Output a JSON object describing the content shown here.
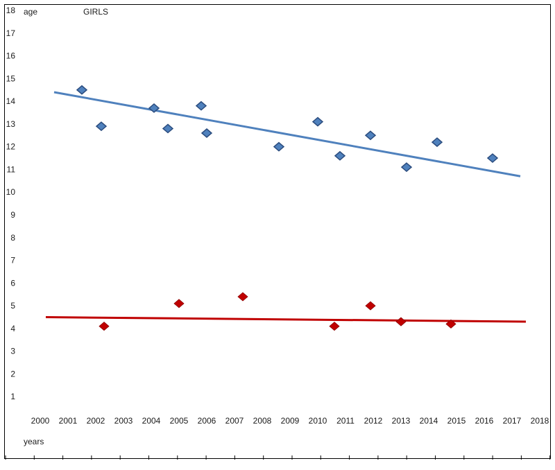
{
  "chart_data": {
    "type": "scatter",
    "title": "GIRLS",
    "ylabel": "age",
    "xlabel": "years",
    "xlim": [
      2000,
      2018
    ],
    "ylim": [
      0,
      18
    ],
    "x_ticks": [
      "2000",
      "2001",
      "2002",
      "2003",
      "2004",
      "2005",
      "2006",
      "2007",
      "2008",
      "2009",
      "2010",
      "2011",
      "2012",
      "2013",
      "2014",
      "2015",
      "2016",
      "2017",
      "2018"
    ],
    "y_ticks": [
      "18",
      "17",
      "16",
      "15",
      "14",
      "13",
      "12",
      "11",
      "10",
      "9",
      "8",
      "7",
      "6",
      "5",
      "4",
      "3",
      "2",
      "1"
    ],
    "grid": false,
    "colors": {
      "blue": "#4f81bd",
      "red": "#c00000"
    },
    "series": [
      {
        "color": "#4f81bd",
        "marker": "diamond",
        "points": [
          {
            "x": 2001.5,
            "y": 14.5
          },
          {
            "x": 2002.2,
            "y": 12.9
          },
          {
            "x": 2004.1,
            "y": 13.7
          },
          {
            "x": 2004.6,
            "y": 12.8
          },
          {
            "x": 2005.8,
            "y": 13.8
          },
          {
            "x": 2006.0,
            "y": 12.6
          },
          {
            "x": 2008.6,
            "y": 12.0
          },
          {
            "x": 2010.0,
            "y": 13.1
          },
          {
            "x": 2010.8,
            "y": 11.6
          },
          {
            "x": 2011.9,
            "y": 12.5
          },
          {
            "x": 2013.2,
            "y": 11.1
          },
          {
            "x": 2014.3,
            "y": 12.2
          },
          {
            "x": 2016.3,
            "y": 11.5
          }
        ],
        "trendline": [
          {
            "x": 2000.5,
            "y": 14.4
          },
          {
            "x": 2017.3,
            "y": 10.7
          }
        ]
      },
      {
        "color": "#c00000",
        "marker": "diamond",
        "points": [
          {
            "x": 2002.3,
            "y": 4.1
          },
          {
            "x": 2005.0,
            "y": 5.1
          },
          {
            "x": 2007.3,
            "y": 5.4
          },
          {
            "x": 2010.6,
            "y": 4.1
          },
          {
            "x": 2011.9,
            "y": 5.0
          },
          {
            "x": 2013.0,
            "y": 4.3
          },
          {
            "x": 2014.8,
            "y": 4.2
          }
        ],
        "trendline": [
          {
            "x": 2000.2,
            "y": 4.5
          },
          {
            "x": 2017.5,
            "y": 4.3
          }
        ]
      }
    ]
  }
}
